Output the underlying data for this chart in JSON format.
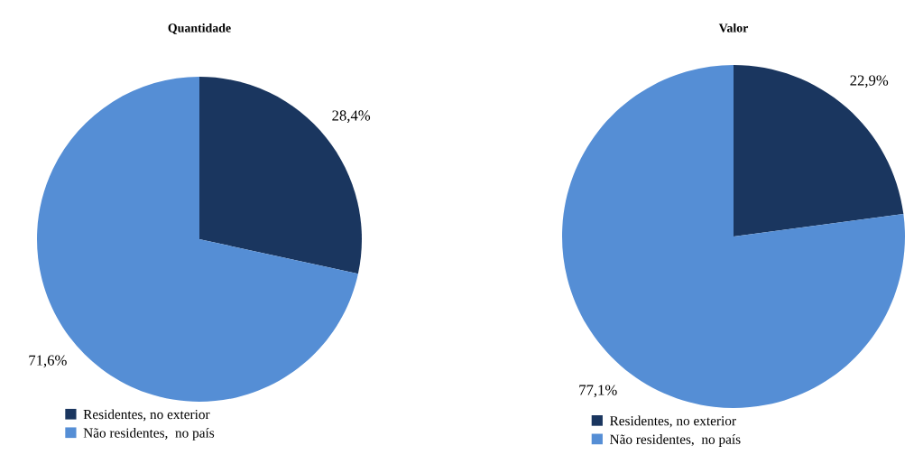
{
  "chart_data": [
    {
      "type": "pie",
      "title": "Quantidade",
      "categories": [
        "Residentes, no exterior",
        "Não residentes,  no país"
      ],
      "values": [
        28.4,
        71.6
      ],
      "colors": [
        "#1a365f",
        "#558ed5"
      ],
      "value_labels": [
        "28,4%",
        "71,6%"
      ],
      "legend": "bottom"
    },
    {
      "type": "pie",
      "title": "Valor",
      "categories": [
        "Residentes, no exterior",
        "Não residentes,  no país"
      ],
      "values": [
        22.9,
        77.1
      ],
      "colors": [
        "#1a365f",
        "#558ed5"
      ],
      "value_labels": [
        "22,9%",
        "77,1%"
      ],
      "legend": "bottom"
    }
  ]
}
